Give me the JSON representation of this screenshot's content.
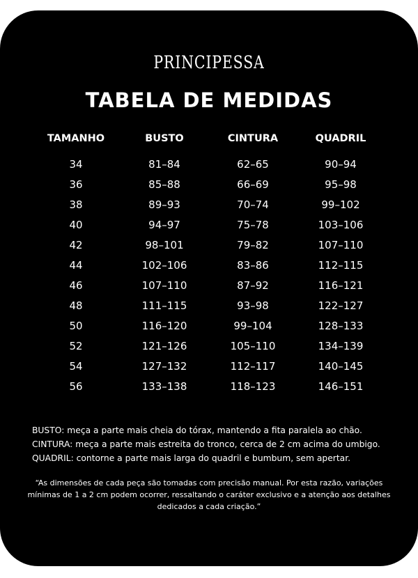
{
  "brand": "PRINCIPESSA",
  "title": "TABELA DE MEDIDAS",
  "table": {
    "headers": [
      "TAMANHO",
      "BUSTO",
      "CINTURA",
      "QUADRIL"
    ],
    "rows": [
      [
        "34",
        "81–84",
        "62–65",
        "90–94"
      ],
      [
        "36",
        "85–88",
        "66–69",
        "95–98"
      ],
      [
        "38",
        "89–93",
        "70–74",
        "99–102"
      ],
      [
        "40",
        "94–97",
        "75–78",
        "103–106"
      ],
      [
        "42",
        "98–101",
        "79–82",
        "107–110"
      ],
      [
        "44",
        "102–106",
        "83–86",
        "112–115"
      ],
      [
        "46",
        "107–110",
        "87–92",
        "116–121"
      ],
      [
        "48",
        "111–115",
        "93–98",
        "122–127"
      ],
      [
        "50",
        "116–120",
        "99–104",
        "128–133"
      ],
      [
        "52",
        "121–126",
        "105–110",
        "134–139"
      ],
      [
        "54",
        "127–132",
        "112–117",
        "140–145"
      ],
      [
        "56",
        "133–138",
        "118–123",
        "146–151"
      ]
    ]
  },
  "notes": [
    "BUSTO: meça a parte mais cheia do tórax, mantendo a fita paralela ao chão.",
    "CINTURA: meça a parte mais estreita do tronco, cerca de 2 cm acima do umbigo.",
    "QUADRIL: contorne a parte mais larga do quadril e bumbum, sem apertar."
  ],
  "quote": "“As dimensões de cada peça são tomadas com precisão manual. Por esta razão, variações mínimas de 1 a 2 cm podem ocorrer, ressaltando o caráter exclusivo e a atenção aos detalhes dedicados a cada criação.”",
  "colors": {
    "background": "#000000",
    "text": "#ffffff"
  }
}
